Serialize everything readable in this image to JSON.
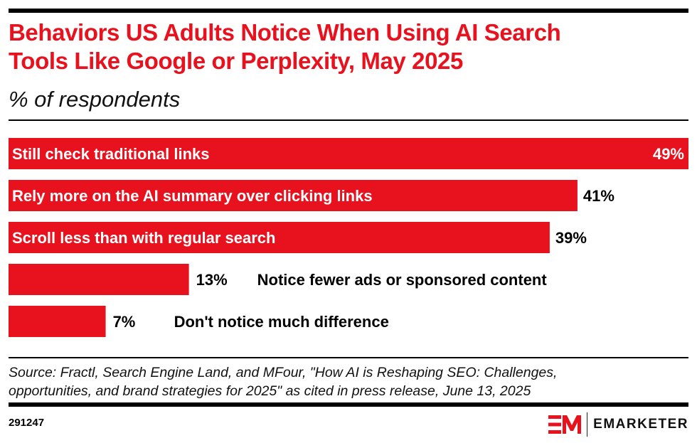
{
  "header": {
    "title_line1": "Behaviors US Adults Notice When Using AI Search",
    "title_line2": "Tools Like Google or Perplexity, May 2025",
    "subtitle": "% of respondents"
  },
  "colors": {
    "accent": "#e8111e",
    "text": "#000000",
    "inside_label": "#ffffff"
  },
  "chart_data": {
    "type": "bar",
    "orientation": "horizontal",
    "title": "Behaviors US Adults Notice When Using AI Search Tools Like Google or Perplexity, May 2025",
    "subtitle": "% of respondents",
    "xlabel": "",
    "ylabel": "",
    "xlim": [
      0,
      49
    ],
    "grid": false,
    "legend": "none",
    "categories": [
      "Still check traditional links",
      "Rely more on the AI summary over clicking links",
      "Scroll less than with regular search",
      "Notice fewer ads or sponsored content",
      "Don't notice much difference"
    ],
    "values": [
      49,
      41,
      39,
      13,
      7
    ],
    "value_labels": [
      "49%",
      "41%",
      "39%",
      "13%",
      "7%"
    ]
  },
  "footer": {
    "source_line1": "Source: Fractl, Search Engine Land, and MFour, \"How AI is Reshaping SEO: Challenges,",
    "source_line2": "opportunities, and brand strategies for 2025\" as cited in press release, June 13, 2025",
    "chart_id": "291247",
    "brand": "EMARKETER"
  }
}
